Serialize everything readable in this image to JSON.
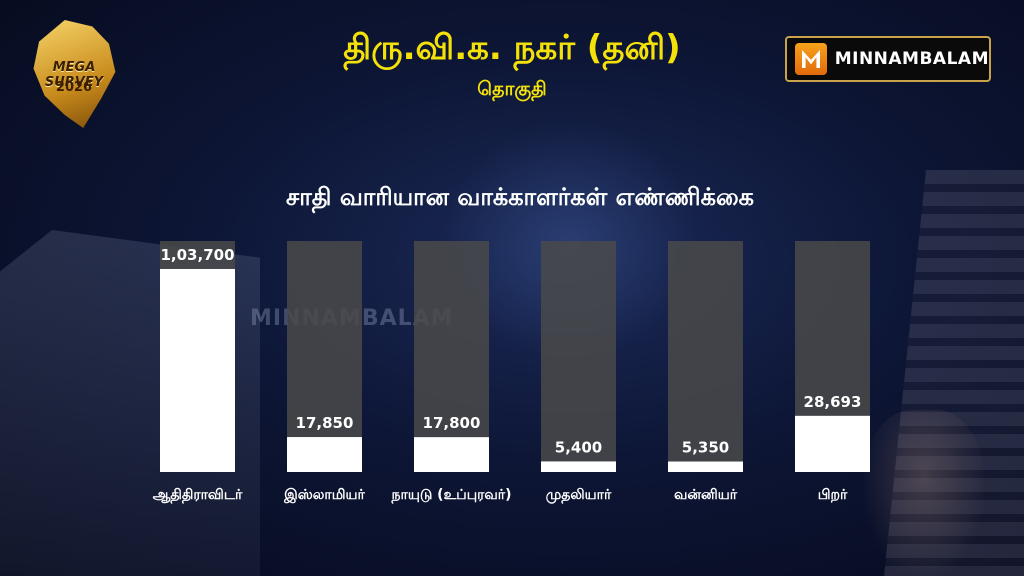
{
  "header": {
    "title": "திரு.வி.க. நகர் (தனி)",
    "subtitle": "தொகுதி"
  },
  "logo_left": {
    "line1": "MEGA SURVEY",
    "line2": "2026"
  },
  "brand": {
    "name": "MINNAMBALAM",
    "icon": "minnambalam-m-icon"
  },
  "watermark": "MINNAMBALAM",
  "colors": {
    "title": "#f5e10a",
    "bar_fill": "#ffffff",
    "bar_track": "#4a4a4a"
  },
  "chart_data": {
    "type": "bar",
    "title": "சாதி வாரியான வாக்காளர்கள்  எண்ணிக்கை",
    "categories": [
      "ஆதிதிராவிடர்",
      "இஸ்லாமியர்",
      "நாயுடு (உப்புரவர்)",
      "முதலியார்",
      "வன்னியர்",
      "பிறர்"
    ],
    "values": [
      103700,
      17850,
      17800,
      5400,
      5350,
      28693
    ],
    "value_labels": [
      "1,03,700",
      "17,850",
      "17,800",
      "5,400",
      "5,350",
      "28,693"
    ],
    "ylim": [
      0,
      118000
    ],
    "grid": false,
    "legend": "none"
  }
}
